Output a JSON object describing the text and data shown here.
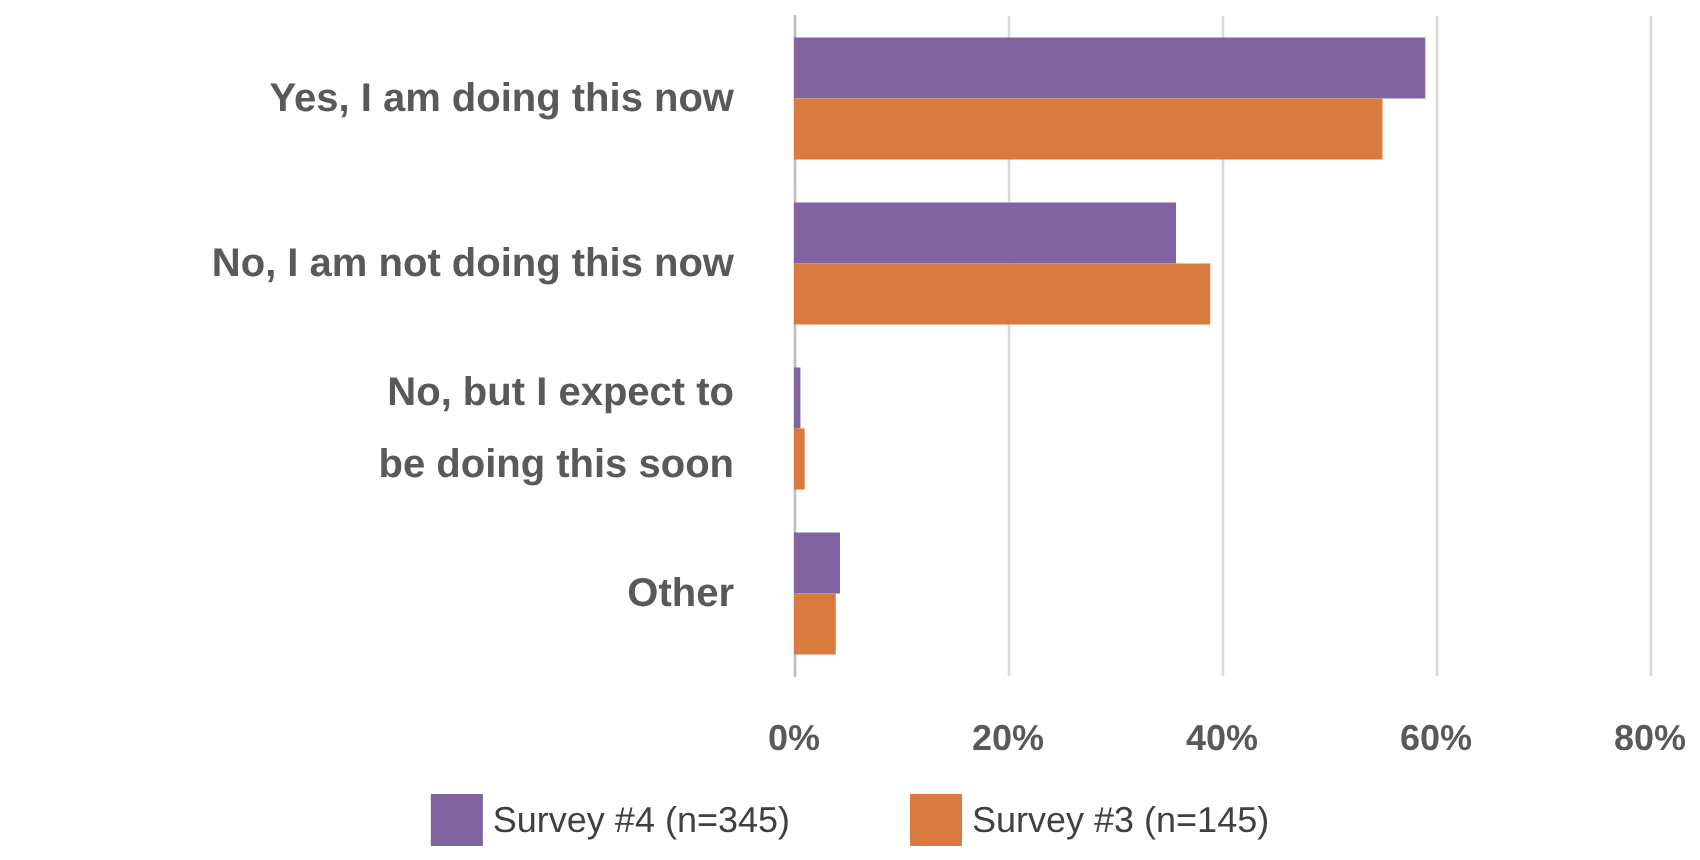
{
  "chart_data": {
    "type": "bar",
    "orientation": "horizontal",
    "categories": [
      "Yes, I am doing this now",
      "No, I am not doing this now",
      "No, but I expect to\nbe doing this soon",
      "Other"
    ],
    "series": [
      {
        "name": "Survey #4 (n=345)",
        "color": "#8064a2",
        "values": [
          59,
          35.7,
          0.6,
          4.3
        ]
      },
      {
        "name": "Survey #3 (n=145)",
        "color": "#d97b3f",
        "values": [
          55,
          38.9,
          1,
          3.9
        ]
      }
    ],
    "xlim": [
      0,
      80
    ],
    "xticks": [
      {
        "value": 0,
        "label": "0%"
      },
      {
        "value": 20,
        "label": "20%"
      },
      {
        "value": 40,
        "label": "40%"
      },
      {
        "value": 60,
        "label": "60%"
      },
      {
        "value": 80,
        "label": "80%"
      }
    ],
    "grid": "x",
    "legend": "bottom"
  }
}
